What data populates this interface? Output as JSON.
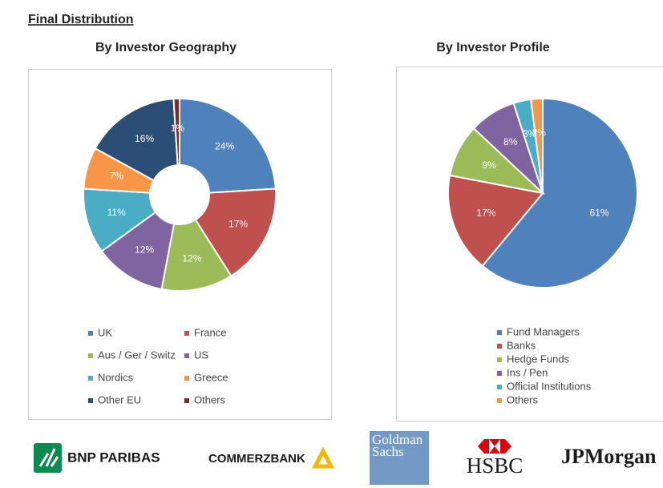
{
  "heading": "Final Distribution",
  "chart_data": [
    {
      "type": "donut",
      "title": "By Investor Geography",
      "categories": [
        "UK",
        "France",
        "Aus / Ger / Switz",
        "US",
        "Nordics",
        "Greece",
        "Other EU",
        "Others"
      ],
      "values": [
        24,
        17,
        12,
        12,
        11,
        7,
        16,
        1
      ],
      "value_labels": [
        "24%",
        "17%",
        "12%",
        "12%",
        "11%",
        "7%",
        "16%",
        "1%"
      ],
      "colors": [
        "#4f81bd",
        "#c0504d",
        "#9bbb59",
        "#8064a2",
        "#4bacc6",
        "#f79646",
        "#2c4d75",
        "#772c2a"
      ]
    },
    {
      "type": "pie",
      "title": "By Investor Profile",
      "categories": [
        "Fund Managers",
        "Banks",
        "Hedge Funds",
        "Ins / Pen",
        "Official Institutions",
        "Others"
      ],
      "values": [
        61,
        17,
        9,
        8,
        3,
        2
      ],
      "value_labels": [
        "61%",
        "17%",
        "9%",
        "8%",
        "3%",
        "2%"
      ],
      "colors": [
        "#4f81bd",
        "#c0504d",
        "#9bbb59",
        "#8064a2",
        "#4bacc6",
        "#f79646"
      ]
    }
  ],
  "logos": {
    "bnp": "BNP PARIBAS",
    "commerzbank": "COMMERZBANK",
    "goldman": [
      "Goldman",
      "Sachs"
    ],
    "hsbc": "HSBC",
    "jpmorgan": "JPMorgan"
  }
}
